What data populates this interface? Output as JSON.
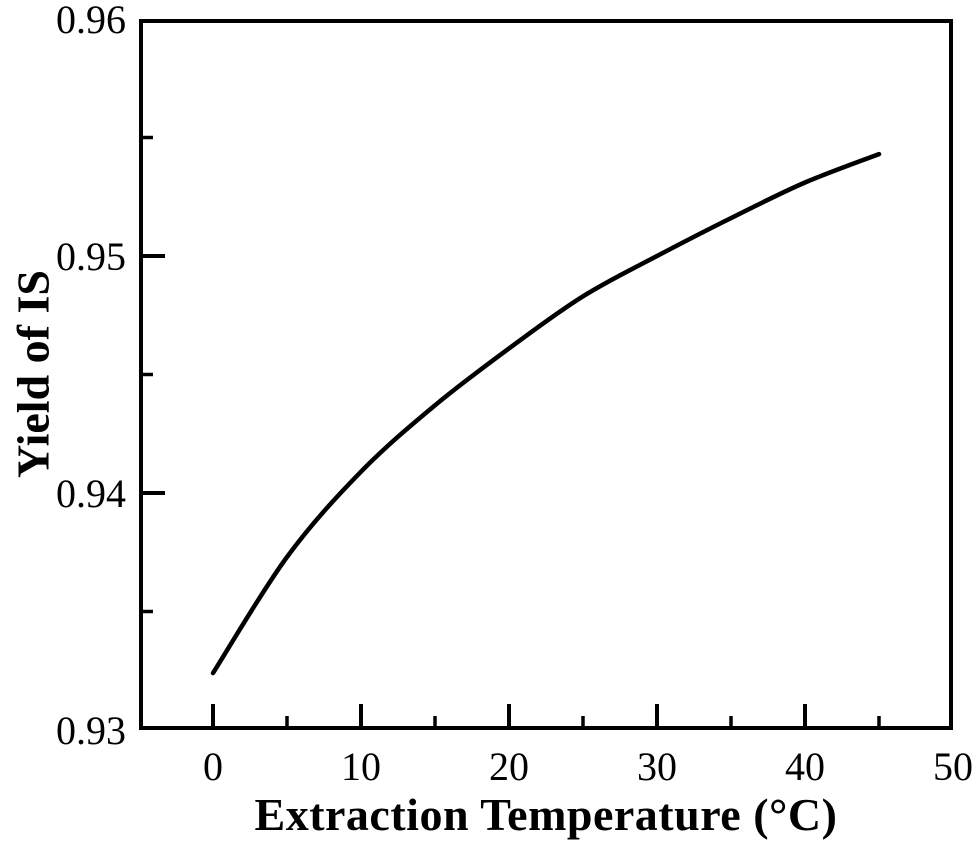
{
  "figure": {
    "background": "#ffffff"
  },
  "chart_data": {
    "type": "line",
    "title": "",
    "xlabel": "Extraction Temperature  (°C)",
    "ylabel": "Yield of IS",
    "x": [
      0,
      5,
      10,
      15,
      20,
      25,
      30,
      35,
      40,
      45
    ],
    "y": [
      0.9324,
      0.9373,
      0.9409,
      0.9437,
      0.9461,
      0.9483,
      0.95,
      0.9516,
      0.9531,
      0.9543
    ],
    "series_name": "Yield of IS",
    "xlim": [
      -5,
      50
    ],
    "ylim": [
      0.93,
      0.96
    ],
    "x_ticks": [
      {
        "value": 0,
        "label": "0"
      },
      {
        "value": 10,
        "label": "10"
      },
      {
        "value": 20,
        "label": "20"
      },
      {
        "value": 30,
        "label": "30"
      },
      {
        "value": 40,
        "label": "40"
      },
      {
        "value": 50,
        "label": "50"
      }
    ],
    "y_ticks": [
      {
        "value": 0.93,
        "label": "0.93"
      },
      {
        "value": 0.94,
        "label": "0.94"
      },
      {
        "value": 0.95,
        "label": "0.95"
      },
      {
        "value": 0.96,
        "label": "0.96"
      }
    ],
    "x_major_tick_marks": [
      0,
      10,
      20,
      30,
      40
    ],
    "x_minor_tick_marks": [
      5,
      15,
      25,
      35,
      45
    ],
    "y_major_tick_marks": [
      0.94,
      0.95
    ],
    "y_minor_tick_marks": [
      0.935,
      0.945,
      0.955
    ],
    "grid": false,
    "legend": null,
    "line_color": "#000000",
    "axis_color": "#000000",
    "text_color": "#000000"
  }
}
